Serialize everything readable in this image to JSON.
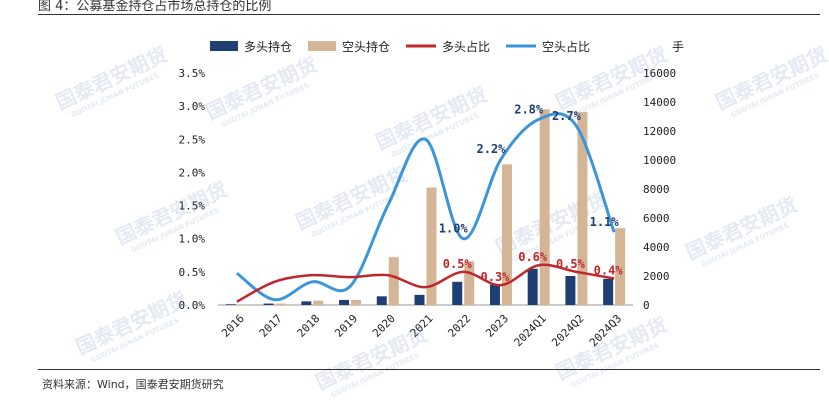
{
  "figure": {
    "title": "图 4：公募基金持仓占市场总持仓的比例",
    "source": "资料来源：Wind，国泰君安期货研究"
  },
  "watermark": {
    "text": "国泰君安期货",
    "subtext": "GUOTAI JUNAN FUTURES"
  },
  "colors": {
    "long_bar": "#1f3f73",
    "short_bar": "#d4b595",
    "long_line": "#c0272d",
    "short_line": "#3b95d8",
    "axis": "#999999"
  },
  "chart_data": {
    "type": "bar",
    "categories": [
      "2016",
      "2017",
      "2018",
      "2019",
      "2020",
      "2021",
      "2022",
      "2023",
      "2024Q1",
      "2024Q2",
      "2024Q3"
    ],
    "left_axis": {
      "ticks": [
        "3.5%",
        "3.0%",
        "2.5%",
        "2.0%",
        "1.5%",
        "1.0%",
        "0.5%",
        "0.0%"
      ],
      "ylim": [
        0,
        3.5
      ]
    },
    "right_axis": {
      "ticks": [
        "16000",
        "14000",
        "12000",
        "10000",
        "8000",
        "6000",
        "4000",
        "2000",
        "0"
      ],
      "ylim": [
        0,
        16000
      ],
      "unit": "手"
    },
    "series": [
      {
        "name": "多头持仓",
        "kind": "bar",
        "axis": "right",
        "values": [
          50,
          100,
          250,
          350,
          600,
          700,
          1600,
          1400,
          2500,
          2000,
          1800
        ]
      },
      {
        "name": "空头持仓",
        "kind": "bar",
        "axis": "right",
        "values": [
          50,
          100,
          300,
          350,
          3300,
          8100,
          3000,
          9700,
          13500,
          13300,
          5300
        ]
      },
      {
        "name": "多头占比",
        "kind": "line",
        "axis": "left",
        "values": [
          0.05,
          0.35,
          0.45,
          0.42,
          0.45,
          0.27,
          0.5,
          0.3,
          0.6,
          0.5,
          0.4
        ]
      },
      {
        "name": "空头占比",
        "kind": "line",
        "axis": "left",
        "values": [
          0.48,
          0.08,
          0.35,
          0.28,
          1.5,
          2.5,
          1.0,
          2.2,
          2.8,
          2.7,
          1.1
        ]
      }
    ],
    "data_labels": [
      {
        "series": 3,
        "index": 6,
        "text": "1.0%"
      },
      {
        "series": 3,
        "index": 7,
        "text": "2.2%"
      },
      {
        "series": 3,
        "index": 8,
        "text": "2.8%"
      },
      {
        "series": 3,
        "index": 9,
        "text": "2.7%"
      },
      {
        "series": 3,
        "index": 10,
        "text": "1.1%"
      },
      {
        "series": 2,
        "index": 6,
        "text": "0.5%"
      },
      {
        "series": 2,
        "index": 7,
        "text": "0.3%"
      },
      {
        "series": 2,
        "index": 8,
        "text": "0.6%"
      },
      {
        "series": 2,
        "index": 9,
        "text": "0.5%"
      },
      {
        "series": 2,
        "index": 10,
        "text": "0.4%"
      }
    ],
    "legend": {
      "position": "top"
    }
  }
}
